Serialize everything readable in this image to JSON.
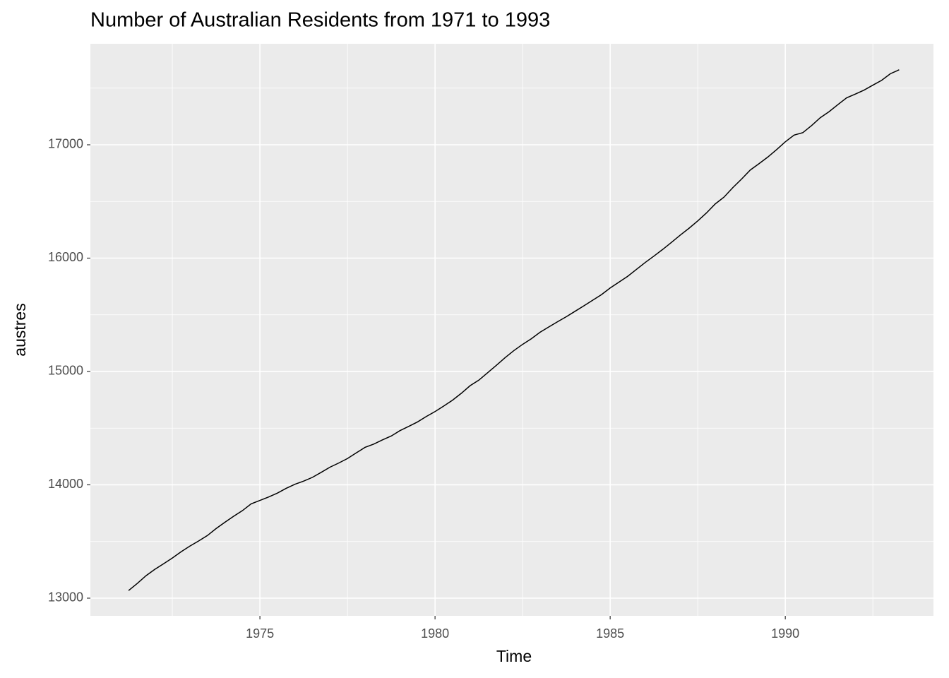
{
  "chart_data": {
    "type": "line",
    "title": "Number of Australian Residents from 1971 to 1993",
    "x_label": "Time",
    "y_label": "austres",
    "x": [
      1971.25,
      1971.5,
      1971.75,
      1972,
      1972.25,
      1972.5,
      1972.75,
      1973,
      1973.25,
      1973.5,
      1973.75,
      1974,
      1974.25,
      1974.5,
      1974.75,
      1975,
      1975.25,
      1975.5,
      1975.75,
      1976,
      1976.25,
      1976.5,
      1976.75,
      1977,
      1977.25,
      1977.5,
      1977.75,
      1978,
      1978.25,
      1978.5,
      1978.75,
      1979,
      1979.25,
      1979.5,
      1979.75,
      1980,
      1980.25,
      1980.5,
      1980.75,
      1981,
      1981.25,
      1981.5,
      1981.75,
      1982,
      1982.25,
      1982.5,
      1982.75,
      1983,
      1983.25,
      1983.5,
      1983.75,
      1984,
      1984.25,
      1984.5,
      1984.75,
      1985,
      1985.25,
      1985.5,
      1985.75,
      1986,
      1986.25,
      1986.5,
      1986.75,
      1987,
      1987.25,
      1987.5,
      1987.75,
      1988,
      1988.25,
      1988.5,
      1988.75,
      1989,
      1989.25,
      1989.5,
      1989.75,
      1990,
      1990.25,
      1990.5,
      1990.75,
      1991,
      1991.25,
      1991.5,
      1991.75,
      1992,
      1992.25,
      1992.5,
      1992.75,
      1993,
      1993.25
    ],
    "series": [
      {
        "name": "austres",
        "color": "#000000",
        "values": [
          13067.3,
          13130.5,
          13198.4,
          13254.2,
          13303.7,
          13353.9,
          13409.3,
          13459.2,
          13504.5,
          13552.6,
          13614.3,
          13669.5,
          13722.6,
          13772.1,
          13832.0,
          13862.6,
          13893.0,
          13926.8,
          13968.9,
          14004.7,
          14033.1,
          14066.0,
          14110.1,
          14155.6,
          14192.2,
          14231.7,
          14281.5,
          14330.3,
          14359.3,
          14396.6,
          14430.8,
          14478.4,
          14515.7,
          14554.9,
          14602.5,
          14646.4,
          14695.4,
          14746.6,
          14807.4,
          14874.4,
          14923.3,
          14988.7,
          15054.1,
          15121.7,
          15184.2,
          15239.3,
          15288.9,
          15346.2,
          15393.5,
          15439.0,
          15483.5,
          15531.5,
          15579.4,
          15628.5,
          15677.3,
          15736.7,
          15788.3,
          15839.7,
          15900.6,
          15961.5,
          16018.3,
          16076.9,
          16139.0,
          16203.0,
          16263.3,
          16327.9,
          16398.9,
          16478.3,
          16538.1,
          16621.6,
          16697.0,
          16777.2,
          16833.1,
          16891.6,
          16956.8,
          17026.3,
          17085.4,
          17106.9,
          17169.4,
          17239.4,
          17292.0,
          17354.2,
          17414.2,
          17447.3,
          17482.6,
          17526.0,
          17568.7,
          17627.1,
          17661.5
        ]
      }
    ],
    "xlim": [
      1970.16,
      1994.23
    ],
    "xticks": [
      1975,
      1980,
      1985,
      1990
    ],
    "ylim": [
      12844,
      17891
    ],
    "yticks": [
      13000,
      14000,
      15000,
      16000,
      17000
    ],
    "grid": true
  }
}
